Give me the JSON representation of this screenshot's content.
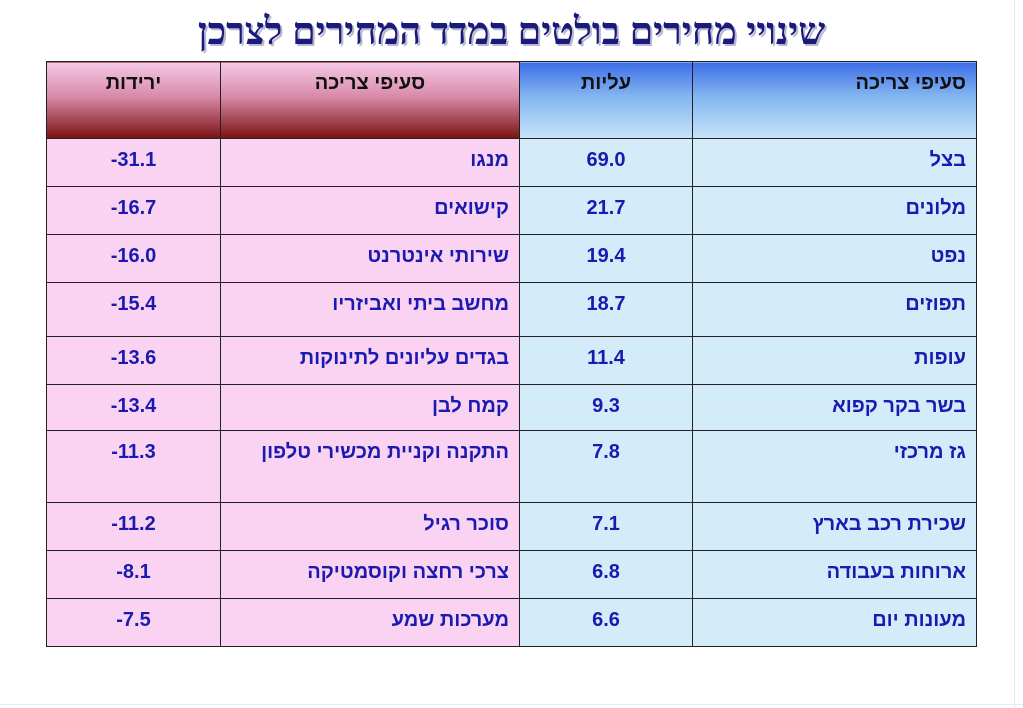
{
  "title": "שינויי מחירים בולטים במדד המחירים לצרכן",
  "headers": {
    "rise_category": "סעיפי צריכה",
    "rise_value": "עליות",
    "fall_category": "סעיפי צריכה",
    "fall_value": "ירידות"
  },
  "rows": [
    {
      "rise_item": "בצל",
      "rise_value": "69.0",
      "fall_item": "מנגו",
      "fall_value": "-31.1"
    },
    {
      "rise_item": "מלונים",
      "rise_value": "21.7",
      "fall_item": "קישואים",
      "fall_value": "-16.7"
    },
    {
      "rise_item": "נפט",
      "rise_value": "19.4",
      "fall_item": "שירותי אינטרנט",
      "fall_value": "-16.0"
    },
    {
      "rise_item": "תפוזים",
      "rise_value": "18.7",
      "fall_item": "מחשב ביתי ואביזריו",
      "fall_value": "-15.4"
    },
    {
      "rise_item": "עופות",
      "rise_value": "11.4",
      "fall_item": "בגדים עליונים לתינוקות",
      "fall_value": "-13.6"
    },
    {
      "rise_item": "בשר בקר קפוא",
      "rise_value": "9.3",
      "fall_item": "קמח לבן",
      "fall_value": "-13.4"
    },
    {
      "rise_item": "גז מרכזי",
      "rise_value": "7.8",
      "fall_item": "התקנה וקניית מכשירי טלפון",
      "fall_value": "-11.3"
    },
    {
      "rise_item": "שכירת רכב בארץ",
      "rise_value": "7.1",
      "fall_item": "סוכר רגיל",
      "fall_value": "-11.2"
    },
    {
      "rise_item": "ארוחות בעבודה",
      "rise_value": "6.8",
      "fall_item": "צרכי רחצה וקוסמטיקה",
      "fall_value": "-8.1"
    },
    {
      "rise_item": "מעונות יום",
      "rise_value": "6.6",
      "fall_item": "מערכות שמע",
      "fall_value": "-7.5"
    }
  ]
}
